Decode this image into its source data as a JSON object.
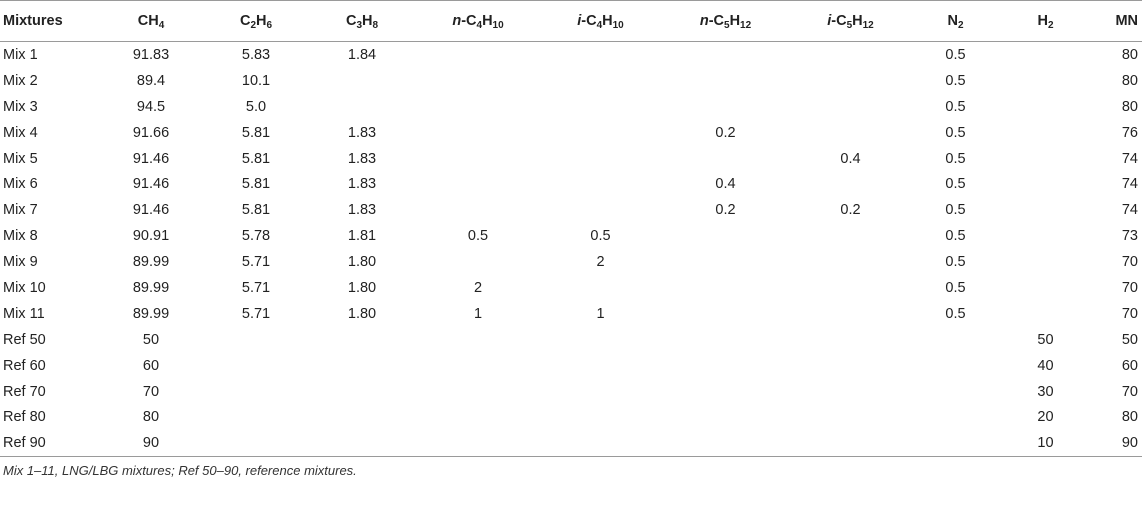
{
  "headers": [
    {
      "key": "mixtures",
      "parts": [
        {
          "t": "Mixtures"
        }
      ]
    },
    {
      "key": "ch4",
      "parts": [
        {
          "t": "CH"
        },
        {
          "t": "4",
          "sub": true
        }
      ]
    },
    {
      "key": "c2h6",
      "parts": [
        {
          "t": "C"
        },
        {
          "t": "2",
          "sub": true
        },
        {
          "t": "H"
        },
        {
          "t": "6",
          "sub": true
        }
      ]
    },
    {
      "key": "c3h8",
      "parts": [
        {
          "t": "C"
        },
        {
          "t": "3",
          "sub": true
        },
        {
          "t": "H"
        },
        {
          "t": "8",
          "sub": true
        }
      ]
    },
    {
      "key": "n_c4h10",
      "parts": [
        {
          "t": "n",
          "it": true
        },
        {
          "t": "-C"
        },
        {
          "t": "4",
          "sub": true
        },
        {
          "t": "H"
        },
        {
          "t": "10",
          "sub": true
        }
      ]
    },
    {
      "key": "i_c4h10",
      "parts": [
        {
          "t": "i",
          "it": true
        },
        {
          "t": "-C"
        },
        {
          "t": "4",
          "sub": true
        },
        {
          "t": "H"
        },
        {
          "t": "10",
          "sub": true
        }
      ]
    },
    {
      "key": "n_c5h12",
      "parts": [
        {
          "t": "n",
          "it": true
        },
        {
          "t": "-C"
        },
        {
          "t": "5",
          "sub": true
        },
        {
          "t": "H"
        },
        {
          "t": "12",
          "sub": true
        }
      ]
    },
    {
      "key": "i_c5h12",
      "parts": [
        {
          "t": "i",
          "it": true
        },
        {
          "t": "-C"
        },
        {
          "t": "5",
          "sub": true
        },
        {
          "t": "H"
        },
        {
          "t": "12",
          "sub": true
        }
      ]
    },
    {
      "key": "n2",
      "parts": [
        {
          "t": "N"
        },
        {
          "t": "2",
          "sub": true
        }
      ]
    },
    {
      "key": "h2",
      "parts": [
        {
          "t": "H"
        },
        {
          "t": "2",
          "sub": true
        }
      ]
    },
    {
      "key": "mn",
      "parts": [
        {
          "t": "MN"
        }
      ]
    }
  ],
  "rows": [
    [
      "Mix 1",
      "91.83",
      "5.83",
      "1.84",
      "",
      "",
      "",
      "",
      "0.5",
      "",
      "80"
    ],
    [
      "Mix 2",
      "89.4",
      "10.1",
      "",
      "",
      "",
      "",
      "",
      "0.5",
      "",
      "80"
    ],
    [
      "Mix 3",
      "94.5",
      "5.0",
      "",
      "",
      "",
      "",
      "",
      "0.5",
      "",
      "80"
    ],
    [
      "Mix 4",
      "91.66",
      "5.81",
      "1.83",
      "",
      "",
      "0.2",
      "",
      "0.5",
      "",
      "76"
    ],
    [
      "Mix 5",
      "91.46",
      "5.81",
      "1.83",
      "",
      "",
      "",
      "0.4",
      "0.5",
      "",
      "74"
    ],
    [
      "Mix 6",
      "91.46",
      "5.81",
      "1.83",
      "",
      "",
      "0.4",
      "",
      "0.5",
      "",
      "74"
    ],
    [
      "Mix 7",
      "91.46",
      "5.81",
      "1.83",
      "",
      "",
      "0.2",
      "0.2",
      "0.5",
      "",
      "74"
    ],
    [
      "Mix 8",
      "90.91",
      "5.78",
      "1.81",
      "0.5",
      "0.5",
      "",
      "",
      "0.5",
      "",
      "73"
    ],
    [
      "Mix 9",
      "89.99",
      "5.71",
      "1.80",
      "",
      "2",
      "",
      "",
      "0.5",
      "",
      "70"
    ],
    [
      "Mix 10",
      "89.99",
      "5.71",
      "1.80",
      "2",
      "",
      "",
      "",
      "0.5",
      "",
      "70"
    ],
    [
      "Mix 11",
      "89.99",
      "5.71",
      "1.80",
      "1",
      "1",
      "",
      "",
      "0.5",
      "",
      "70"
    ],
    [
      "Ref 50",
      "50",
      "",
      "",
      "",
      "",
      "",
      "",
      "",
      "50",
      "50"
    ],
    [
      "Ref 60",
      "60",
      "",
      "",
      "",
      "",
      "",
      "",
      "",
      "40",
      "60"
    ],
    [
      "Ref 70",
      "70",
      "",
      "",
      "",
      "",
      "",
      "",
      "",
      "30",
      "70"
    ],
    [
      "Ref 80",
      "80",
      "",
      "",
      "",
      "",
      "",
      "",
      "",
      "20",
      "80"
    ],
    [
      "Ref 90",
      "90",
      "",
      "",
      "",
      "",
      "",
      "",
      "",
      "10",
      "90"
    ]
  ],
  "footnote": "Mix 1–11, LNG/LBG mixtures; Ref 50–90, reference mixtures."
}
